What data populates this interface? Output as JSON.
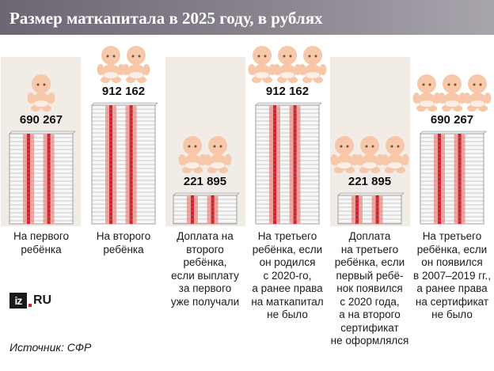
{
  "title": "Размер маткапитала в 2025 году, в рублях",
  "logo": {
    "box_text": "iz",
    "suffix_text": "RU"
  },
  "source": "Источник: СФР",
  "colors": {
    "title_bar": "#8c8791",
    "column_bg": "#f1ece6",
    "money_band": "#d3222a",
    "money_band_light": "#f2a6a2",
    "baby_skin": "#f6c7a8"
  },
  "chart_data": {
    "type": "bar",
    "title": "Размер маткапитала в 2025 году, в рублях",
    "categories": [
      "На первого ребёнка",
      "На второго ребёнка",
      "Доплата на второго ребёнка, если выплату за первого уже получали",
      "На третьего ребёнка, если он родился с 2020-го, а ранее права на маткапитал не было",
      "Доплата на третьего ребёнка, если первый ребёнок появился с 2020 года, а на второго сертификат не оформлялся",
      "На третьего ребёнка, если он появился в 2007–2019 гг., а ранее права на сертификат не было"
    ],
    "values": [
      690267,
      912162,
      221895,
      912162,
      221895,
      690267
    ],
    "value_labels": [
      "690 267",
      "912 162",
      "221 895",
      "912 162",
      "221 895",
      "690 267"
    ],
    "babies_per_column": [
      1,
      2,
      2,
      3,
      3,
      3
    ],
    "descriptions": [
      [
        "На первого",
        "ребёнка"
      ],
      [
        "На второго",
        "ребёнка"
      ],
      [
        "Доплата на",
        "второго",
        "ребёнка,",
        "если выплату",
        "за первого",
        "уже получали"
      ],
      [
        "На третьего",
        "ребёнка, если",
        "он родился",
        "с 2020-го,",
        "а ранее права",
        "на маткапитал",
        "не было"
      ],
      [
        "Доплата",
        "на третьего",
        "ребёнка, если",
        "первый ребё-",
        "нок появился",
        "с 2020 года,",
        "а на второго",
        "сертификат",
        "не оформлялся"
      ],
      [
        "На третьего",
        "ребёнка, если",
        "он появился",
        "в 2007–2019 гг.,",
        "а ранее права",
        "на сертификат",
        "не было"
      ]
    ],
    "ylim": [
      0,
      912162
    ],
    "grid": false,
    "legend": "none"
  }
}
